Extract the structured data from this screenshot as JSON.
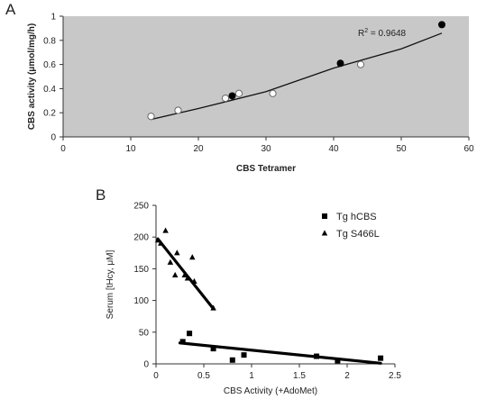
{
  "chart_data": [
    {
      "panel_label": "A",
      "type": "scatter",
      "xlabel": "CBS Tetramer",
      "ylabel": "CBS activity (μmol/mg/h)",
      "xlim": [
        0,
        60
      ],
      "ylim": [
        0,
        1
      ],
      "xticks": [
        "0",
        "10",
        "20",
        "30",
        "40",
        "50",
        "60"
      ],
      "yticks": [
        "0",
        "0.2",
        "0.4",
        "0.6",
        "0.8",
        "1"
      ],
      "grid": false,
      "plot_background": "#c8c8c8",
      "annotation": {
        "prefix": "R",
        "sup": "2",
        "suffix": " = 0.9648"
      },
      "series": [
        {
          "marker": "filled-circle",
          "points": [
            [
              25,
              0.34
            ],
            [
              41,
              0.61
            ],
            [
              56,
              0.93
            ]
          ]
        },
        {
          "marker": "open-circle",
          "points": [
            [
              13,
              0.17
            ],
            [
              17,
              0.22
            ],
            [
              24,
              0.32
            ],
            [
              26,
              0.36
            ],
            [
              31,
              0.36
            ],
            [
              44,
              0.6
            ]
          ]
        }
      ],
      "trendline": [
        [
          13,
          0.145
        ],
        [
          20,
          0.235
        ],
        [
          30,
          0.375
        ],
        [
          40,
          0.57
        ],
        [
          50,
          0.73
        ],
        [
          56,
          0.86
        ]
      ]
    },
    {
      "panel_label": "B",
      "type": "scatter",
      "xlabel": "CBS Activity (+AdoMet)",
      "ylabel": "Serum [tHcy, μM]",
      "xlim": [
        0,
        2.5
      ],
      "ylim": [
        0,
        250
      ],
      "xticks": [
        "0",
        "0.5",
        "1",
        "1.5",
        "2",
        "2.5"
      ],
      "yticks": [
        "0",
        "50",
        "100",
        "150",
        "200",
        "250"
      ],
      "grid": false,
      "plot_background": "#ffffff",
      "legend_position": "top-right",
      "series": [
        {
          "name": "Tg hCBS",
          "marker": "square",
          "points": [
            [
              0.28,
              35
            ],
            [
              0.35,
              48
            ],
            [
              0.6,
              24
            ],
            [
              0.8,
              6
            ],
            [
              0.92,
              14
            ],
            [
              1.68,
              12
            ],
            [
              1.9,
              5
            ],
            [
              2.35,
              9
            ]
          ],
          "fit": [
            [
              0.25,
              33
            ],
            [
              2.35,
              1
            ]
          ]
        },
        {
          "name": "Tg S466L",
          "marker": "triangle",
          "points": [
            [
              0.02,
              195
            ],
            [
              0.05,
              190
            ],
            [
              0.1,
              210
            ],
            [
              0.15,
              160
            ],
            [
              0.2,
              140
            ],
            [
              0.22,
              175
            ],
            [
              0.3,
              140
            ],
            [
              0.33,
              135
            ],
            [
              0.38,
              168
            ],
            [
              0.4,
              130
            ],
            [
              0.6,
              88
            ]
          ],
          "fit": [
            [
              0.02,
              197
            ],
            [
              0.6,
              87
            ]
          ]
        }
      ]
    }
  ]
}
